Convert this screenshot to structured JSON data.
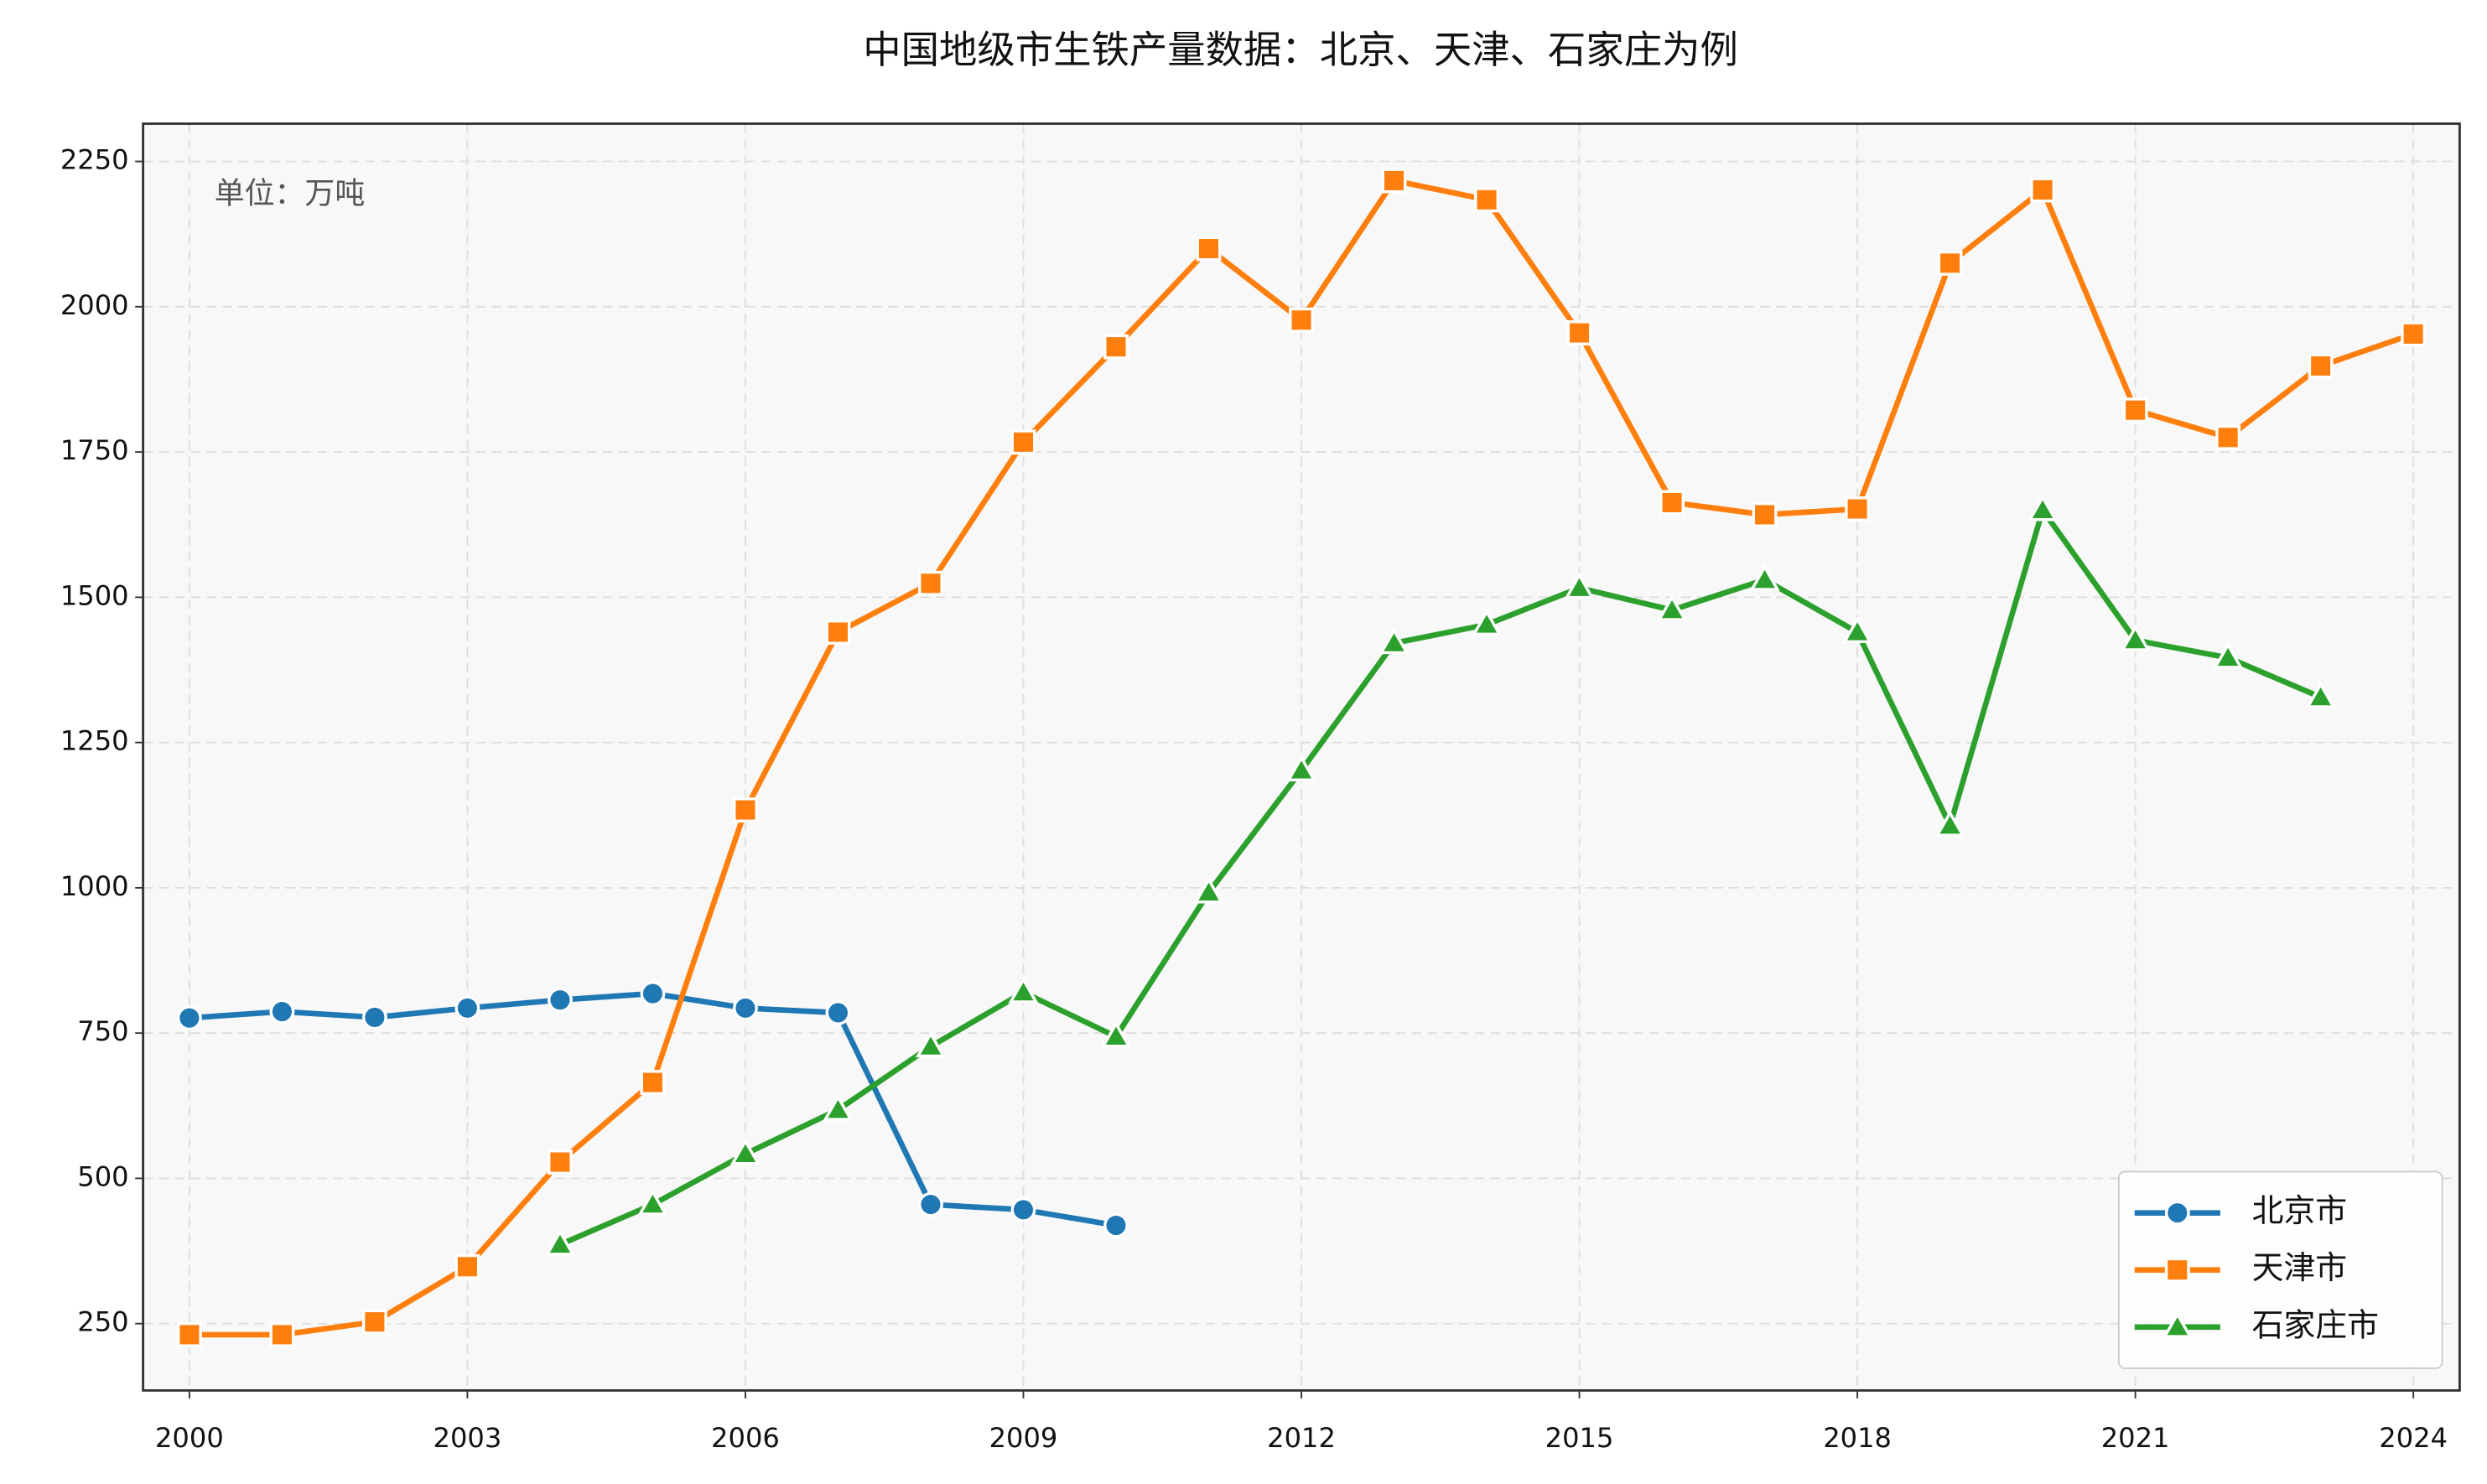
{
  "chart_data": {
    "type": "line",
    "title": "中国地级市生铁产量数据：北京、天津、石家庄为例",
    "annotation": "单位：万吨",
    "x": [
      2000,
      2001,
      2002,
      2003,
      2004,
      2005,
      2006,
      2007,
      2008,
      2009,
      2010,
      2011,
      2012,
      2013,
      2014,
      2015,
      2016,
      2017,
      2018,
      2019,
      2020,
      2021,
      2022,
      2023,
      2024
    ],
    "series": [
      {
        "name": "北京市",
        "color": "#1f77b4",
        "marker": "circle",
        "values": [
          776,
          787,
          777,
          793,
          807,
          818,
          793,
          785,
          455,
          446,
          419,
          null,
          null,
          null,
          null,
          null,
          null,
          null,
          null,
          null,
          null,
          null,
          null,
          null,
          null
        ]
      },
      {
        "name": "天津市",
        "color": "#ff7f0e",
        "marker": "square",
        "values": [
          231,
          231,
          253,
          348,
          528,
          665,
          1134,
          1440,
          1524,
          1767,
          1931,
          2100,
          1977,
          2217,
          2184,
          1955,
          1663,
          1642,
          1652,
          2075,
          2201,
          1822,
          1775,
          1898,
          1953
        ]
      },
      {
        "name": "石家庄市",
        "color": "#2ca02c",
        "marker": "triangle",
        "values": [
          null,
          null,
          null,
          null,
          386,
          455,
          542,
          618,
          727,
          820,
          744,
          992,
          1202,
          1421,
          1453,
          1516,
          1478,
          1530,
          1440,
          1107,
          1650,
          1426,
          1396,
          1328,
          null
        ]
      }
    ],
    "xlim": [
      1999.5,
      2024.5
    ],
    "xticks": [
      2000,
      2003,
      2006,
      2009,
      2012,
      2015,
      2018,
      2021,
      2024
    ],
    "ylim": [
      135,
      2315
    ],
    "yticks": [
      250,
      500,
      750,
      1000,
      1250,
      1500,
      1750,
      2000,
      2250
    ],
    "grid": true,
    "legend": "lower right"
  }
}
